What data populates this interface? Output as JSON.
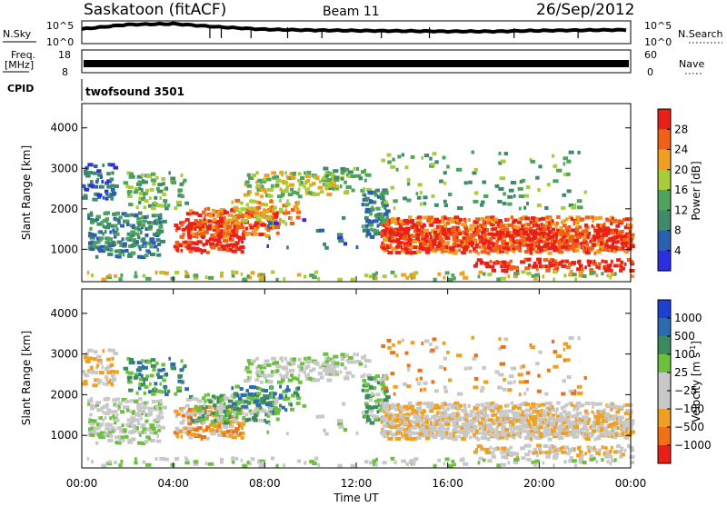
{
  "header": {
    "station": "Saskatoon (fitACF)",
    "beam": "Beam 11",
    "date": "26/Sep/2012"
  },
  "noise_panel": {
    "left_label": "N.Sky",
    "left_ticks": [
      "10^5",
      "10^0"
    ],
    "right_label": "N.Search",
    "right_ticks": [
      "10^5",
      "10^0"
    ]
  },
  "freq_panel": {
    "left_label_1": "Freq.",
    "left_label_2": "[MHz]",
    "left_ticks": [
      "18",
      "8"
    ],
    "right_label": "Nave",
    "right_ticks": [
      "60",
      "0"
    ]
  },
  "cpid": {
    "label": "CPID",
    "value": "twofsound 3501"
  },
  "x_axis": {
    "label": "Time UT",
    "ticks": [
      "00:00",
      "04:00",
      "08:00",
      "12:00",
      "16:00",
      "20:00",
      "00:00"
    ]
  },
  "colors": {
    "power_scale": [
      "#2c2fe0",
      "#2b5fb0",
      "#3f8a6a",
      "#4fa35c",
      "#a8cc3a",
      "#f0a020",
      "#f06018",
      "#e82018"
    ],
    "velocity_scale": [
      "#1f3fd0",
      "#2a6cb0",
      "#3e8a60",
      "#6cc040",
      "#c8c8c8",
      "#c8c8c8",
      "#f0a020",
      "#f07018",
      "#e82018"
    ]
  },
  "chart_data": [
    {
      "type": "line",
      "title": "N.Sky / N.Search",
      "x": [
        0,
        2,
        4,
        6,
        8,
        10,
        12,
        14,
        16,
        18,
        20,
        22,
        24
      ],
      "series": [
        {
          "values": [
            3.2,
            4.3,
            4.5,
            3.7,
            3.1,
            2.9,
            2.8,
            2.7,
            2.6,
            2.6,
            2.8,
            2.9,
            3.0
          ]
        }
      ],
      "ylim": [
        0,
        5
      ]
    },
    {
      "type": "area",
      "title": "Freq. / Nave",
      "x": [
        0,
        24
      ],
      "values": [
        11,
        11
      ],
      "ylim": [
        8,
        18
      ]
    },
    {
      "type": "heatmap",
      "ylabel": "Slant Range [km]",
      "xlabel": "Time UT",
      "colorbar_label": "Power [dB]",
      "colorbar_ticks": [
        "28",
        "24",
        "20",
        "16",
        "12",
        "8",
        "4"
      ],
      "y_ticks": [
        "4000",
        "3000",
        "2000",
        "1000"
      ],
      "xlim": [
        0,
        24
      ],
      "ylim": [
        200,
        4600
      ],
      "colorbar_range": [
        0,
        30
      ]
    },
    {
      "type": "heatmap",
      "ylabel": "Slant Range [km]",
      "xlabel": "Time UT",
      "colorbar_label": "Velocity [m s",
      "colorbar_unit_sup": "-1",
      "colorbar_ticks": [
        "1000",
        "500",
        "100",
        "25",
        "−25",
        "−100",
        "−500",
        "−1000"
      ],
      "y_ticks": [
        "4000",
        "3000",
        "2000",
        "1000"
      ],
      "xlim": [
        0,
        24
      ],
      "ylim": [
        200,
        4600
      ],
      "colorbar_range": [
        -1000,
        1000
      ]
    }
  ]
}
